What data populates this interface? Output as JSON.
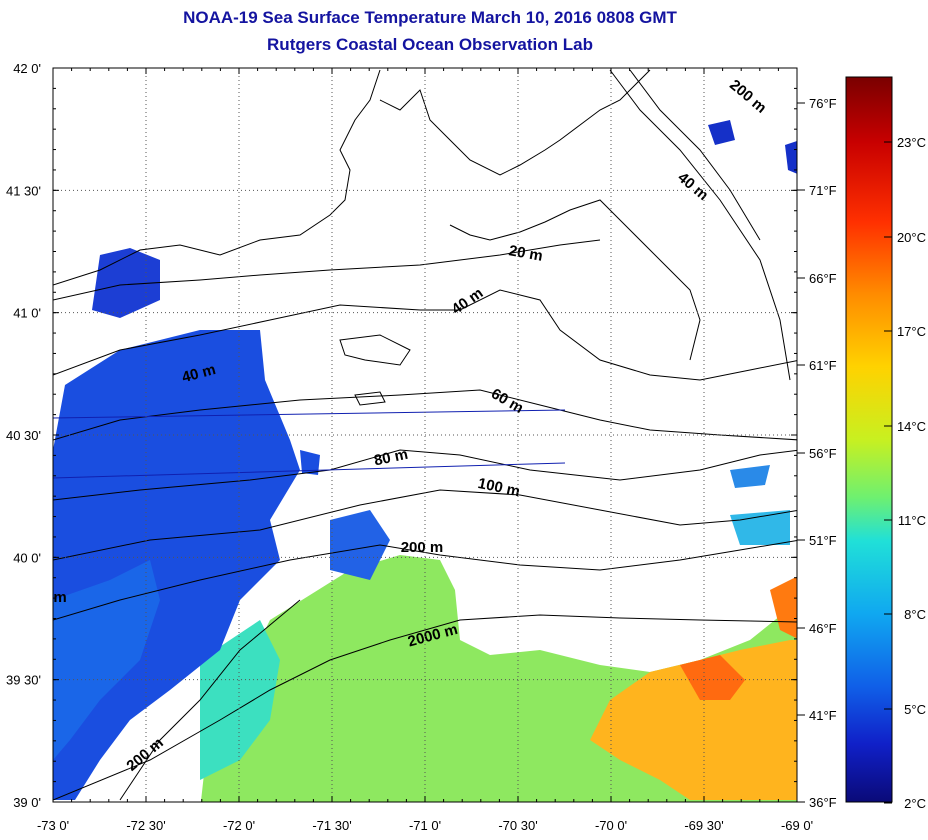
{
  "title": "NOAA-19 Sea Surface Temperature March 10, 2016 0808 GMT",
  "subtitle": "Rutgers Coastal Ocean Observation Lab",
  "map": {
    "lon_range": [
      -73,
      -69
    ],
    "lat_range": [
      39,
      42
    ],
    "lon_ticks": [
      "-73 0'",
      "-72 30'",
      "-72 0'",
      "-71 30'",
      "-71 0'",
      "-70 30'",
      "-70 0'",
      "-69 30'",
      "-69 0'"
    ],
    "lat_ticks": [
      "42 0'",
      "41 30'",
      "41 0'",
      "40 30'",
      "40 0'",
      "39 30'",
      "39 0'"
    ],
    "grid": true,
    "contour_labels": [
      "200 m",
      "40 m",
      "20 m",
      "40 m",
      "40 m",
      "60 m",
      "80 m",
      "100 m",
      "200 m",
      "2000 m",
      "200 m",
      "m"
    ]
  },
  "colorbar": {
    "celsius_labels": [
      "23°C",
      "20°C",
      "17°C",
      "14°C",
      "11°C",
      "8°C",
      "5°C",
      "2°C"
    ],
    "fahrenheit_labels": [
      "76°F",
      "71°F",
      "66°F",
      "61°F",
      "56°F",
      "51°F",
      "46°F",
      "41°F",
      "36°F"
    ],
    "colors": [
      "#7a0000",
      "#c80000",
      "#ff3000",
      "#ff8c00",
      "#ffd200",
      "#c8f020",
      "#6ef070",
      "#20e0d8",
      "#10a8f0",
      "#1060e8",
      "#1020c8",
      "#0a0a78"
    ]
  }
}
